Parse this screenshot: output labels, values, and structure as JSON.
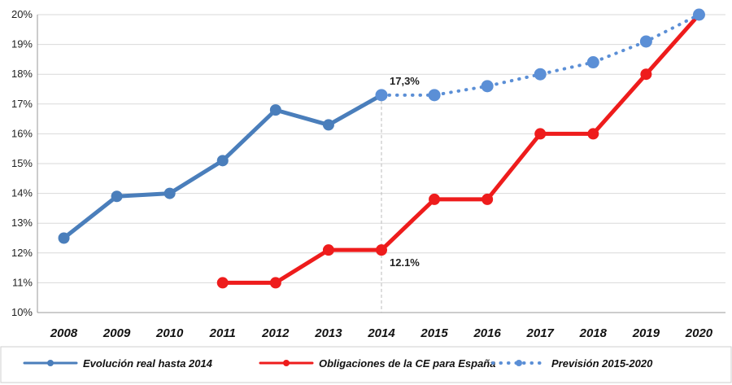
{
  "chart_data": {
    "type": "line",
    "x": [
      "2008",
      "2009",
      "2010",
      "2011",
      "2012",
      "2013",
      "2014",
      "2015",
      "2016",
      "2017",
      "2018",
      "2019",
      "2020"
    ],
    "y_ticks": [
      "10%",
      "11%",
      "12%",
      "13%",
      "14%",
      "15%",
      "16%",
      "17%",
      "18%",
      "19%",
      "20%"
    ],
    "ylim": [
      10,
      20
    ],
    "grid": true,
    "legend_position": "bottom",
    "series": [
      {
        "name": "Evolución real hasta 2014",
        "color": "#4a7ebb",
        "style": "solid",
        "points": [
          [
            2008,
            12.5
          ],
          [
            2009,
            13.9
          ],
          [
            2010,
            14.0
          ],
          [
            2011,
            15.1
          ],
          [
            2012,
            16.8
          ],
          [
            2013,
            16.3
          ],
          [
            2014,
            17.3
          ]
        ]
      },
      {
        "name": "Obligaciones de la CE para España",
        "color": "#ee1c1c",
        "style": "solid",
        "points": [
          [
            2011,
            11.0
          ],
          [
            2012,
            11.0
          ],
          [
            2013,
            12.1
          ],
          [
            2014,
            12.1
          ],
          [
            2015,
            13.8
          ],
          [
            2016,
            13.8
          ],
          [
            2017,
            16.0
          ],
          [
            2018,
            16.0
          ],
          [
            2019,
            18.0
          ],
          [
            2020,
            20.0
          ]
        ]
      },
      {
        "name": "Previsión 2015-2020",
        "color": "#5b8fd6",
        "style": "dotted",
        "points": [
          [
            2014,
            17.3
          ],
          [
            2015,
            17.3
          ],
          [
            2016,
            17.6
          ],
          [
            2017,
            18.0
          ],
          [
            2018,
            18.4
          ],
          [
            2019,
            19.1
          ],
          [
            2020,
            20.0
          ]
        ]
      }
    ],
    "annotations": [
      {
        "text": "17,3%",
        "x": 2014,
        "y": 17.3
      },
      {
        "text": "12.1%",
        "x": 2014,
        "y": 12.1
      }
    ],
    "reference_line": {
      "x": 2014,
      "style": "dashed"
    }
  }
}
